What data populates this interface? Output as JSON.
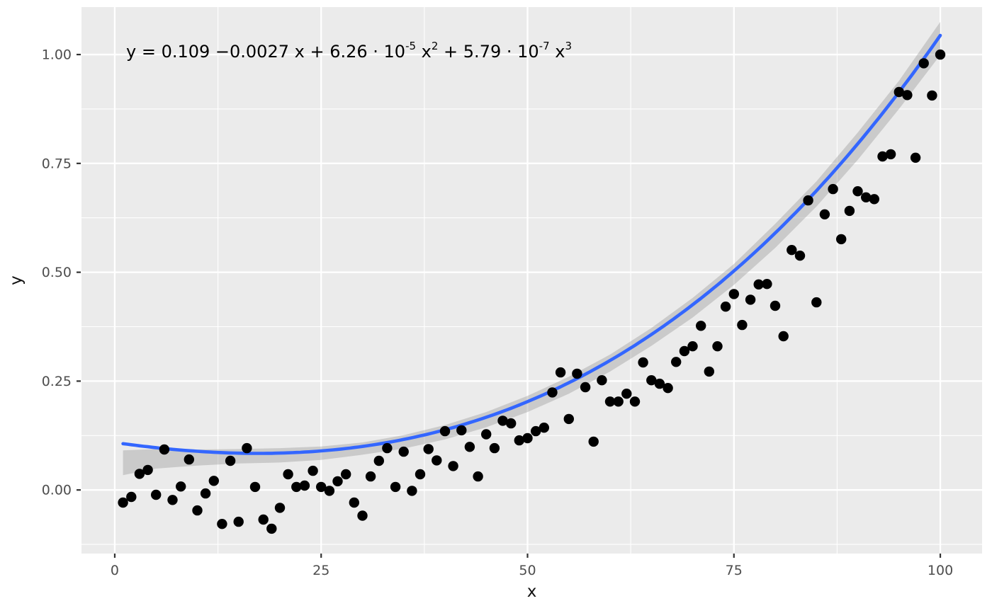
{
  "figure": {
    "background": "#FFFFFF",
    "panel_background": "#EBEBEB",
    "grid_color": "#FFFFFF"
  },
  "chart_data": {
    "type": "scatter",
    "title": "",
    "xlabel": "x",
    "ylabel": "y",
    "legend": "none",
    "grid": "on",
    "x_axis": {
      "range": [
        -4.03,
        105.06
      ],
      "ticks": [
        0,
        25,
        50,
        75,
        100
      ],
      "tick_labels": [
        "0",
        "25",
        "50",
        "75",
        "100"
      ],
      "minor_ticks": [
        12.5,
        37.5,
        62.5,
        87.5
      ]
    },
    "y_axis": {
      "range": [
        -0.146,
        1.109
      ],
      "ticks": [
        0,
        0.25,
        0.5,
        0.75,
        1.0
      ],
      "tick_labels": [
        "0.00",
        "0.25",
        "0.50",
        "0.75",
        "1.00"
      ],
      "minor_ticks": [
        -0.125,
        0.125,
        0.375,
        0.625,
        0.875
      ]
    },
    "equation": {
      "text": "y = 0.109 −0.0027 x + 6.26 · 10⁻⁵ x² + 5.79 · 10⁻⁷ x³",
      "segments": [
        {
          "text": "y = 0.109 −0.0027 x + 6.26 · 10"
        },
        {
          "sup": "-5"
        },
        {
          "text": " x"
        },
        {
          "sup": "2"
        },
        {
          "text": " + 5.79 · 10"
        },
        {
          "sup": "-7"
        },
        {
          "text": " x"
        },
        {
          "sup": "3"
        }
      ]
    },
    "regression": {
      "model": "cubic",
      "coefficients": [
        0.109,
        -0.0027,
        6.26e-05,
        5.79e-07
      ],
      "x_range": [
        1,
        100
      ],
      "line_color": "#3366FF"
    },
    "confidence_band": {
      "fill": "#999999",
      "opacity": 0.4,
      "x": [
        1,
        5,
        10,
        15,
        20,
        25,
        30,
        35,
        40,
        45,
        50,
        55,
        60,
        65,
        70,
        75,
        80,
        85,
        90,
        95,
        100
      ],
      "upper": [
        0.091,
        0.094,
        0.093,
        0.094,
        0.096,
        0.1,
        0.109,
        0.126,
        0.149,
        0.179,
        0.216,
        0.26,
        0.311,
        0.372,
        0.441,
        0.519,
        0.611,
        0.709,
        0.821,
        0.94,
        1.075
      ],
      "lower": [
        0.034,
        0.049,
        0.056,
        0.061,
        0.063,
        0.069,
        0.081,
        0.095,
        0.116,
        0.144,
        0.179,
        0.221,
        0.272,
        0.331,
        0.396,
        0.471,
        0.556,
        0.651,
        0.758,
        0.875,
        0.999
      ]
    },
    "points": {
      "color": "#000000",
      "radius": 7.2,
      "x": [
        1,
        2,
        3,
        4,
        5,
        6,
        7,
        8,
        9,
        10,
        11,
        12,
        13,
        14,
        15,
        16,
        17,
        18,
        19,
        20,
        21,
        22,
        23,
        24,
        25,
        26,
        27,
        28,
        29,
        30,
        31,
        32,
        33,
        34,
        35,
        36,
        37,
        38,
        39,
        40,
        41,
        42,
        43,
        44,
        45,
        46,
        47,
        48,
        49,
        50,
        51,
        52,
        53,
        54,
        55,
        56,
        57,
        58,
        59,
        60,
        61,
        62,
        63,
        64,
        65,
        66,
        67,
        68,
        69,
        70,
        71,
        72,
        73,
        74,
        75,
        76,
        77,
        78,
        79,
        80,
        81,
        82,
        83,
        84,
        85,
        86,
        87,
        88,
        89,
        90,
        91,
        92,
        93,
        94,
        95,
        96,
        97,
        98,
        99,
        100
      ],
      "y": [
        -0.029,
        -0.016,
        0.037,
        0.046,
        -0.011,
        0.093,
        -0.023,
        0.008,
        0.07,
        -0.047,
        -0.008,
        0.021,
        -0.078,
        0.067,
        -0.073,
        0.096,
        0.007,
        -0.068,
        -0.089,
        -0.041,
        0.036,
        0.007,
        0.01,
        0.044,
        0.007,
        -0.002,
        0.02,
        0.036,
        -0.029,
        -0.059,
        0.031,
        0.067,
        0.096,
        0.007,
        0.088,
        -0.002,
        0.036,
        0.094,
        0.068,
        0.135,
        0.055,
        0.137,
        0.099,
        0.031,
        0.128,
        0.096,
        0.159,
        0.153,
        0.114,
        0.119,
        0.135,
        0.143,
        0.224,
        0.27,
        0.163,
        0.267,
        0.236,
        0.111,
        0.252,
        0.203,
        0.203,
        0.221,
        0.203,
        0.293,
        0.252,
        0.244,
        0.234,
        0.294,
        0.319,
        0.33,
        0.377,
        0.272,
        0.33,
        0.421,
        0.45,
        0.379,
        0.437,
        0.472,
        0.473,
        0.423,
        0.353,
        0.551,
        0.538,
        0.665,
        0.431,
        0.633,
        0.691,
        0.576,
        0.641,
        0.686,
        0.672,
        0.668,
        0.766,
        0.771,
        0.914,
        0.907,
        0.763,
        0.98,
        0.906,
        1.0
      ]
    },
    "styles": {
      "tick_label_color": "#4D4D4D",
      "axis_title_color": "#111111",
      "tick_mark_color": "#333333",
      "equation_color": "#000000"
    }
  }
}
